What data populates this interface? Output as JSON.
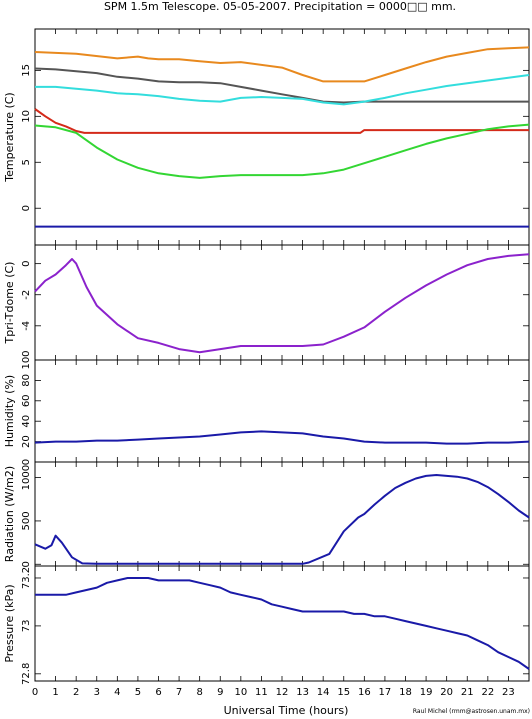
{
  "title": "SPM 1.5m Telescope. 05-05-2007. Precipitation = 0000□□ mm.",
  "credit": "Raul Michel (rmm@astrosen.unam.mx)",
  "chart_data": {
    "type": "line",
    "xlabel": "Universal Time (hours)",
    "xlim": [
      0,
      24
    ],
    "xticks": [
      0,
      1,
      2,
      3,
      4,
      5,
      6,
      7,
      8,
      9,
      10,
      11,
      12,
      13,
      14,
      15,
      16,
      17,
      18,
      19,
      20,
      21,
      22,
      23
    ],
    "panels": [
      {
        "id": "temperature",
        "ylabel": "Temperature (C)",
        "ylim": [
          -4,
          19.5
        ],
        "yticks": [
          0,
          5,
          10,
          15
        ],
        "series": [
          {
            "color": "#e8891e",
            "x": [
              0,
              2,
              4,
              5,
              5.5,
              6,
              7,
              8,
              9,
              10,
              12,
              13,
              14,
              15,
              16,
              17,
              18,
              19,
              20,
              21,
              22,
              23,
              24
            ],
            "y": [
              17,
              16.8,
              16.3,
              16.5,
              16.3,
              16.2,
              16.2,
              16,
              15.8,
              15.9,
              15.3,
              14.5,
              13.8,
              13.8,
              13.8,
              14.5,
              15.2,
              15.9,
              16.5,
              16.9,
              17.3,
              17.4,
              17.5
            ]
          },
          {
            "color": "#555555",
            "x": [
              0,
              1,
              2,
              3,
              4,
              5,
              6,
              7,
              8,
              9,
              10,
              11,
              12,
              13,
              14,
              15,
              16,
              17,
              18,
              19,
              20,
              21,
              22,
              23,
              24
            ],
            "y": [
              15.2,
              15.1,
              14.9,
              14.7,
              14.3,
              14.1,
              13.8,
              13.7,
              13.7,
              13.6,
              13.2,
              12.8,
              12.4,
              12,
              11.6,
              11.5,
              11.6,
              11.6,
              11.6,
              11.6,
              11.6,
              11.6,
              11.6,
              11.6,
              11.6
            ]
          },
          {
            "color": "#33dddd",
            "x": [
              0,
              1,
              2,
              3,
              4,
              5,
              6,
              7,
              8,
              9,
              10,
              11,
              12,
              13,
              14,
              15,
              16,
              17,
              18,
              19,
              20,
              21,
              22,
              23,
              24
            ],
            "y": [
              13.2,
              13.2,
              13,
              12.8,
              12.5,
              12.4,
              12.2,
              11.9,
              11.7,
              11.6,
              12,
              12.1,
              12,
              11.9,
              11.5,
              11.3,
              11.6,
              12,
              12.5,
              12.9,
              13.3,
              13.6,
              13.9,
              14.2,
              14.5
            ]
          },
          {
            "color": "#d42a1a",
            "x": [
              0,
              0.5,
              1,
              1.5,
              2,
              2.4,
              3,
              6,
              9,
              12,
              15,
              15.8,
              16,
              18,
              21,
              24
            ],
            "y": [
              10.8,
              10,
              9.3,
              8.9,
              8.4,
              8.2,
              8.2,
              8.2,
              8.2,
              8.2,
              8.2,
              8.2,
              8.5,
              8.5,
              8.5,
              8.5
            ]
          },
          {
            "color": "#33d633",
            "x": [
              0,
              1,
              2,
              3,
              4,
              5,
              6,
              7,
              8,
              9,
              10,
              11,
              12,
              13,
              14,
              15,
              16,
              17,
              18,
              19,
              20,
              21,
              22,
              23,
              24
            ],
            "y": [
              9,
              8.8,
              8.2,
              6.6,
              5.3,
              4.4,
              3.8,
              3.5,
              3.3,
              3.5,
              3.6,
              3.6,
              3.6,
              3.6,
              3.8,
              4.2,
              4.9,
              5.6,
              6.3,
              7,
              7.6,
              8.1,
              8.6,
              8.9,
              9.1
            ]
          },
          {
            "color": "#1a1aa8",
            "x": [
              0,
              24
            ],
            "y": [
              -2,
              -2
            ]
          }
        ]
      },
      {
        "id": "tpri-tdome",
        "ylabel": "Tpri-Tdome (C)",
        "ylim": [
          -6.2,
          1.2
        ],
        "yticks": [
          -4,
          -2,
          0
        ],
        "series": [
          {
            "color": "#8b22cc",
            "x": [
              0,
              0.5,
              1,
              1.5,
              1.8,
              2,
              2.5,
              3,
              4,
              5,
              6,
              7,
              8,
              9,
              10,
              11,
              12,
              13,
              14,
              15,
              16,
              17,
              18,
              19,
              20,
              21,
              22,
              23,
              24
            ],
            "y": [
              -1.8,
              -1.1,
              -0.7,
              -0.1,
              0.3,
              0,
              -1.5,
              -2.7,
              -3.9,
              -4.8,
              -5.1,
              -5.5,
              -5.7,
              -5.5,
              -5.3,
              -5.3,
              -5.3,
              -5.3,
              -5.2,
              -4.7,
              -4.1,
              -3.1,
              -2.2,
              -1.4,
              -0.7,
              -0.1,
              0.3,
              0.5,
              0.6
            ]
          }
        ]
      },
      {
        "id": "humidity",
        "ylabel": "Humidity (%)",
        "ylim": [
          0,
          100
        ],
        "yticks": [
          0,
          20,
          40,
          60,
          80,
          100
        ],
        "series": [
          {
            "color": "#1a1aa8",
            "x": [
              0,
              1,
              2,
              3,
              4,
              5,
              6,
              7,
              8,
              9,
              10,
              11,
              12,
              13,
              14,
              15,
              16,
              17,
              18,
              19,
              20,
              21,
              22,
              23,
              24
            ],
            "y": [
              19,
              20,
              20,
              21,
              21,
              22,
              23,
              24,
              25,
              27,
              29,
              30,
              29,
              28,
              25,
              23,
              20,
              19,
              19,
              19,
              18,
              18,
              19,
              19,
              20
            ]
          }
        ]
      },
      {
        "id": "radiation",
        "ylabel": "Radiation (W/m2)",
        "ylim": [
          -20,
          1180
        ],
        "yticks": [
          0,
          500,
          1000
        ],
        "series": [
          {
            "color": "#1a1aa8",
            "x": [
              0,
              0.5,
              0.8,
              1,
              1.3,
              1.8,
              2.3,
              3,
              5,
              7,
              9,
              11,
              13,
              13.3,
              14.3,
              15,
              15.7,
              16,
              16.5,
              17,
              17.5,
              18,
              18.5,
              19,
              19.5,
              20,
              20.5,
              21,
              21.5,
              22,
              22.5,
              23,
              23.5,
              24
            ],
            "y": [
              230,
              180,
              220,
              330,
              250,
              80,
              10,
              5,
              5,
              5,
              5,
              5,
              5,
              20,
              120,
              380,
              540,
              580,
              690,
              790,
              880,
              940,
              990,
              1020,
              1030,
              1020,
              1010,
              990,
              950,
              890,
              810,
              720,
              620,
              540
            ]
          }
        ]
      },
      {
        "id": "pressure",
        "ylabel": "Pressure (kPa)",
        "ylim": [
          72.77,
          73.25
        ],
        "yticks": [
          72.8,
          73,
          73.2
        ],
        "series": [
          {
            "color": "#1a1aa8",
            "x": [
              0,
              0.5,
              1,
              1.5,
              2,
              2.5,
              3,
              3.5,
              4,
              4.5,
              5,
              5.5,
              6,
              6.5,
              7,
              7.5,
              8,
              8.5,
              9,
              9.5,
              10,
              10.5,
              11,
              11.5,
              12,
              12.5,
              13,
              13.5,
              14,
              14.5,
              15,
              15.5,
              16,
              16.5,
              17,
              17.5,
              18,
              18.5,
              19,
              19.5,
              20,
              20.5,
              21,
              21.5,
              22,
              22.5,
              23,
              23.5,
              24
            ],
            "y": [
              73.13,
              73.13,
              73.13,
              73.13,
              73.14,
              73.15,
              73.16,
              73.18,
              73.19,
              73.2,
              73.2,
              73.2,
              73.19,
              73.19,
              73.19,
              73.19,
              73.18,
              73.17,
              73.16,
              73.14,
              73.13,
              73.12,
              73.11,
              73.09,
              73.08,
              73.07,
              73.06,
              73.06,
              73.06,
              73.06,
              73.06,
              73.05,
              73.05,
              73.04,
              73.04,
              73.03,
              73.02,
              73.01,
              73,
              72.99,
              72.98,
              72.97,
              72.96,
              72.94,
              72.92,
              72.89,
              72.87,
              72.85,
              72.82
            ]
          }
        ]
      }
    ]
  }
}
